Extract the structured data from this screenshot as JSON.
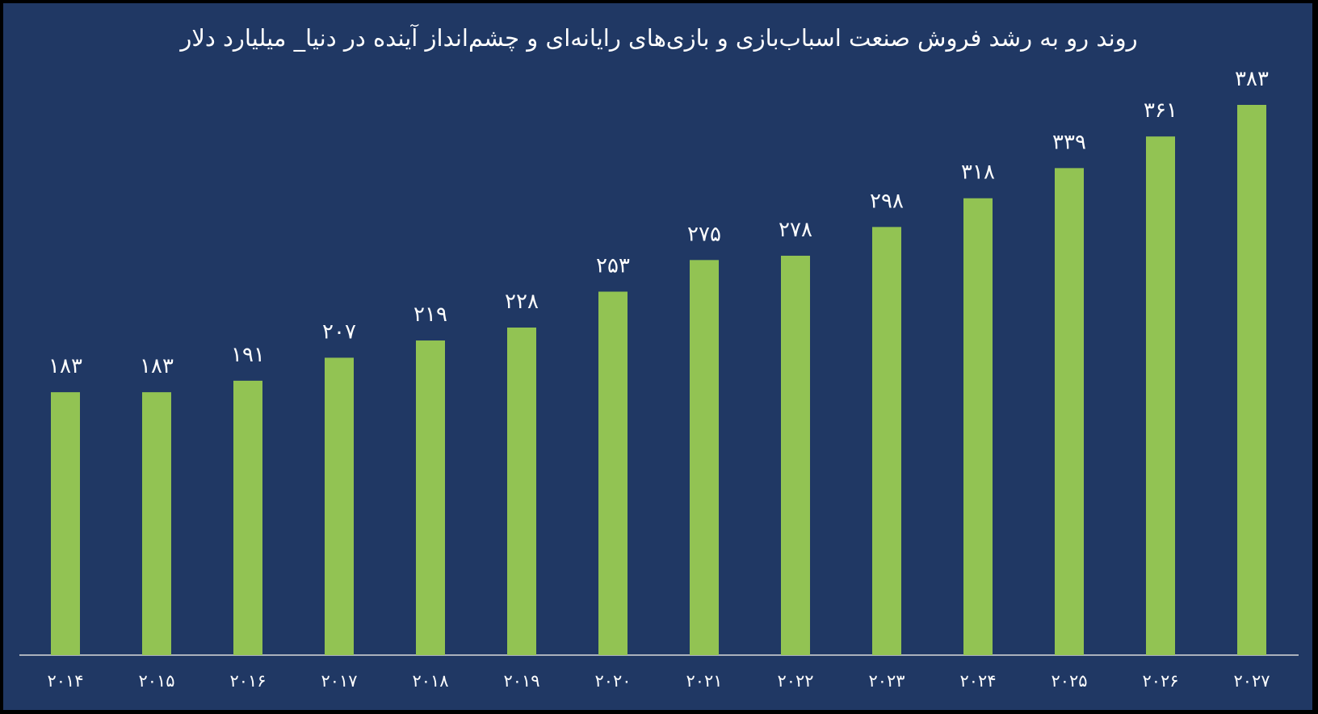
{
  "chart_data": {
    "type": "bar",
    "title": "روند رو به رشد فروش صنعت اسباب‌بازی و بازی‌های رایانه‌ای و چشم‌انداز آینده در دنیا_ میلیارد دلار",
    "categories": [
      "۲۰۱۴",
      "۲۰۱۵",
      "۲۰۱۶",
      "۲۰۱۷",
      "۲۰۱۸",
      "۲۰۱۹",
      "۲۰۲۰",
      "۲۰۲۱",
      "۲۰۲۲",
      "۲۰۲۳",
      "۲۰۲۴",
      "۲۰۲۵",
      "۲۰۲۶",
      "۲۰۲۷"
    ],
    "values": [
      183,
      183,
      191,
      207,
      219,
      228,
      253,
      275,
      278,
      298,
      318,
      339,
      361,
      383
    ],
    "value_labels": [
      "۱۸۳",
      "۱۸۳",
      "۱۹۱",
      "۲۰۷",
      "۲۱۹",
      "۲۲۸",
      "۲۵۳",
      "۲۷۵",
      "۲۷۸",
      "۲۹۸",
      "۳۱۸",
      "۳۳۹",
      "۳۶۱",
      "۳۸۳"
    ],
    "xlabel": "",
    "ylabel": "",
    "ylim": [
      0,
      383
    ],
    "grid": false,
    "legend": "none",
    "colors": {
      "background": "#203864",
      "bar": "#92c353",
      "text": "#ffffff",
      "axis": "#d9d9d9"
    }
  }
}
